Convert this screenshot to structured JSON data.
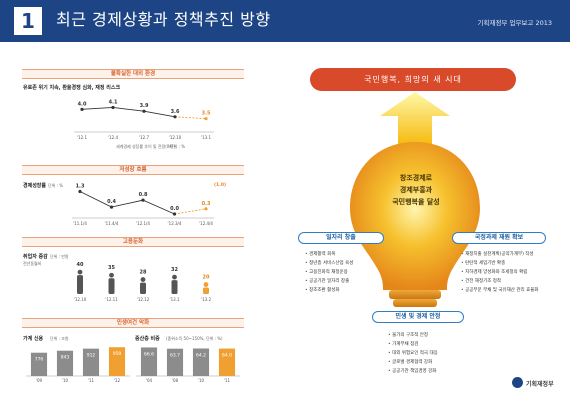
{
  "header": {
    "chapter": "1",
    "title": "최근 경제상황과 정책추진 방향",
    "right_text": "기획재정부 업무보고 2013"
  },
  "sections": {
    "s1": {
      "title": "불확실한 대외 환경",
      "subtitle": "유로존 위기 지속, 환율경쟁 심화, 재정 리스크",
      "caption": "세계경제 성장률 추이 및 전망(IMF)",
      "unit": "단위 : %"
    },
    "s2": {
      "title": "저성장 흐름",
      "subtitle": "경제성장률",
      "unit": "단위 : %"
    },
    "s3": {
      "title": "고용둔화",
      "subtitle": "취업자 증감",
      "unit": "단위 : 만명",
      "unit2": "전년동월비"
    },
    "s4": {
      "title": "민생여건 악화",
      "sub_left": "가계 신용",
      "unit_left": "단위 : 조원",
      "sub_right": "중산층 비중",
      "unit_right": "(중위소득 50~150%, 단위 : %)"
    }
  },
  "chart_data": [
    {
      "type": "line",
      "title": "불확실한 대외 환경",
      "categories": [
        "'12.1",
        "'12.4",
        "'12.7",
        "'12.10",
        "'13.1"
      ],
      "values": [
        4.0,
        4.1,
        3.9,
        3.6,
        3.5
      ],
      "labels": [
        "4.0",
        "4.1",
        "3.9",
        "3.6",
        "3.5"
      ],
      "ylim": [
        3.0,
        4.5
      ]
    },
    {
      "type": "line",
      "title": "저성장 흐름",
      "categories": [
        "'11.1/4",
        "'11.4/4",
        "'12.1/4",
        "'12.3/4",
        "'12.4/4"
      ],
      "values": [
        1.3,
        0.4,
        0.8,
        0.0,
        0.3
      ],
      "labels": [
        "1.3",
        "0.4",
        "0.8",
        "0.0",
        "0.3"
      ],
      "annotation": "(1.0)",
      "ylim": [
        0,
        1.5
      ]
    },
    {
      "type": "bar",
      "title": "고용둔화",
      "categories": [
        "'12.10",
        "'12.11",
        "'12.12",
        "'13.1",
        "'13.2"
      ],
      "values": [
        40,
        35,
        28,
        32,
        20
      ],
      "labels": [
        "40",
        "35",
        "28",
        "32",
        "20"
      ],
      "ylim": [
        0,
        45
      ]
    },
    {
      "type": "bar",
      "title": "가계 신용",
      "categories": [
        "'09",
        "'10",
        "'11",
        "'12"
      ],
      "values": [
        776,
        843,
        912,
        959
      ],
      "labels": [
        "776",
        "843",
        "912",
        "959"
      ],
      "ylim": [
        0,
        1000
      ]
    },
    {
      "type": "bar",
      "title": "중산층 비중",
      "categories": [
        "'04",
        "'08",
        "'10",
        "'11"
      ],
      "values": [
        66.6,
        63.7,
        64.2,
        64.0
      ],
      "labels": [
        "66.6",
        "63.7",
        "64.2",
        "64.0"
      ],
      "ylim": [
        0,
        70
      ]
    }
  ],
  "vision": {
    "banner": "국민행복, 희망의 새 시대",
    "center_lines": [
      "창조경제로",
      "경제부흥과",
      "국민행복을 달성"
    ],
    "left_pill": "일자리 창출",
    "right_pill": "국정과제 재원 확보",
    "bottom_pill": "민생 및 경제 안정",
    "left_items": [
      "경제활력 회복",
      "청년층 서비스산업 육성",
      "고용친화적 재정운용",
      "공공기관 일자리 창출",
      "창조조환 활성화"
    ],
    "right_items": [
      "재정지출 실천계획(공약가계부) 작성",
      "탄탄적 세입기반 확충",
      "지하경제 양성화와 조세정의 확립",
      "건전 재정기조 정착",
      "공공부문 부채 및 국유재산 관리 효율화"
    ],
    "bottom_items": [
      "물가의 구조적 안정",
      "가계부채 점검",
      "대외 위험요인 적극 대응",
      "글로벌 경제협력 강화",
      "공공기관 책임경영 강화"
    ]
  },
  "footer": {
    "org": "기획재정부"
  },
  "colors": {
    "header": "#1d4585",
    "accent": "#d8632f",
    "bulb": "#f1a51f",
    "pill": "#2f7ec4"
  }
}
